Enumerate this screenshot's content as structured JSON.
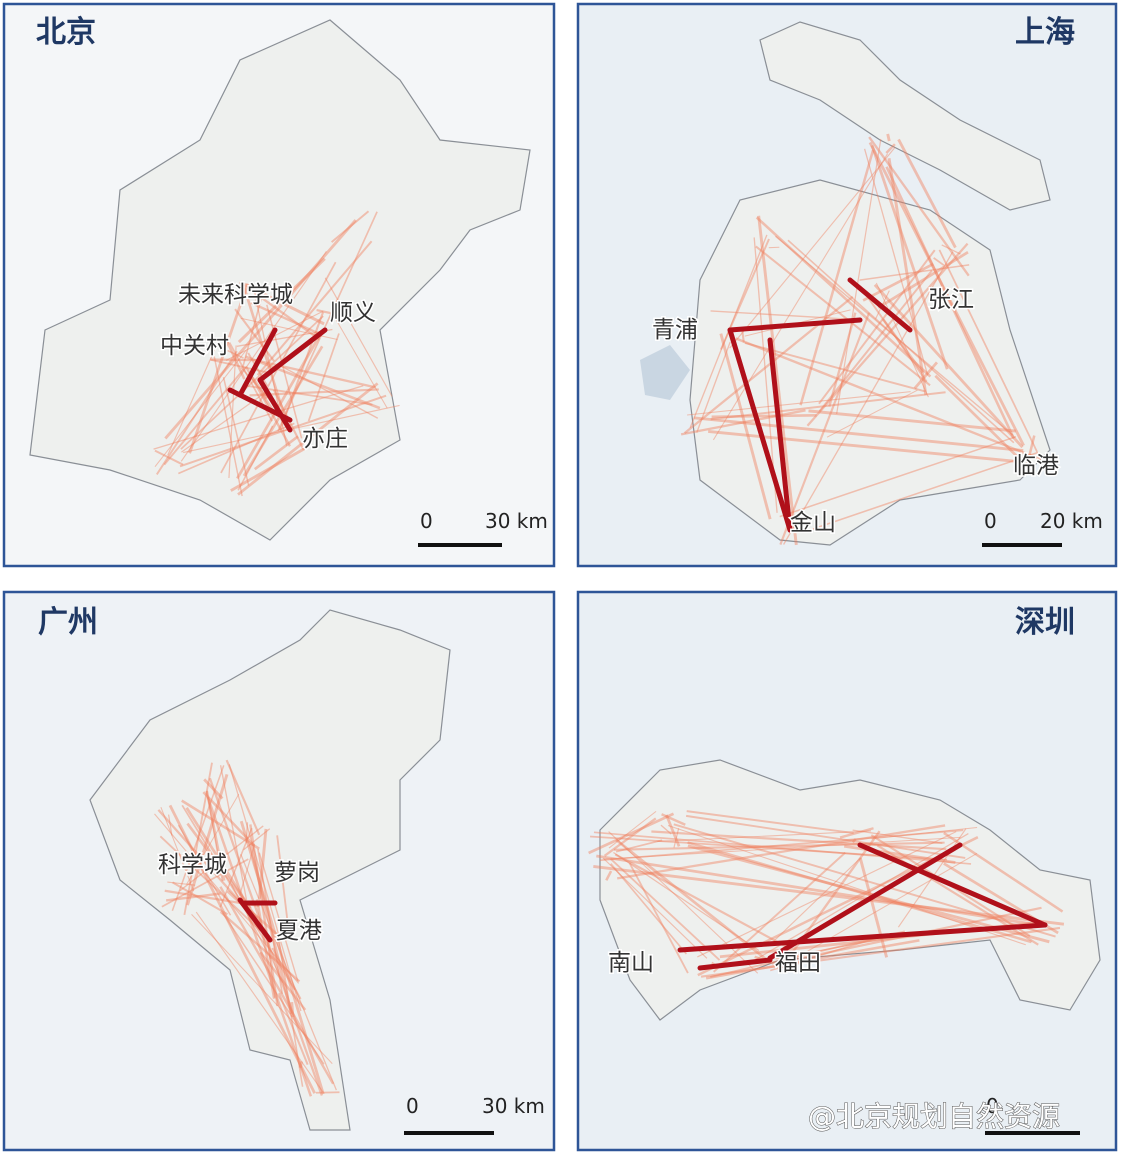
{
  "panels": [
    {
      "title": "北京",
      "places": [
        "未来科学城",
        "中关村",
        "顺义",
        "亦庄"
      ],
      "scale": {
        "zero": "0",
        "length": "30 km"
      }
    },
    {
      "title": "上海",
      "places": [
        "青浦",
        "张江",
        "临港",
        "金山"
      ],
      "scale": {
        "zero": "0",
        "length": "20 km"
      }
    },
    {
      "title": "广州",
      "places": [
        "科学城",
        "萝岗",
        "夏港"
      ],
      "scale": {
        "zero": "0",
        "length": "30 km"
      }
    },
    {
      "title": "深圳",
      "places": [
        "南山",
        "福田"
      ],
      "scale": {
        "zero": "0"
      }
    }
  ],
  "watermark": "@北京规划自然资源"
}
